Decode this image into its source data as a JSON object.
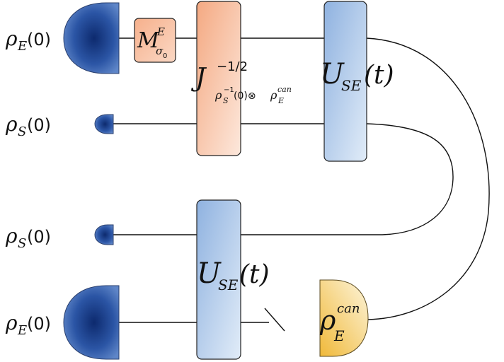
{
  "diagram": {
    "left_labels": [
      {
        "symbol": "ρ",
        "sub": "E",
        "arg": "(0)"
      },
      {
        "symbol": "ρ",
        "sub": "S",
        "arg": "(0)"
      },
      {
        "symbol": "ρ",
        "sub": "S",
        "arg": "(0)"
      },
      {
        "symbol": "ρ",
        "sub": "E",
        "arg": "(0)"
      }
    ],
    "measure_box": {
      "symbol": "M",
      "sup": "E",
      "sub": "σ",
      "subsub": "0"
    },
    "twirl_box": {
      "symbol": "J",
      "sup": "−1/2",
      "sub_rho": "ρ",
      "sub_S": "S",
      "sub_sup": "−1",
      "sub_arg": "(0)⊗",
      "sub_rho2": "ρ",
      "sub_E": "E",
      "sub_can": "can"
    },
    "unitary_top": {
      "symbol": "U",
      "sub": "SE",
      "arg": "(t)"
    },
    "unitary_bottom": {
      "symbol": "U",
      "sub": "SE",
      "arg": "(t)"
    },
    "canonical_state": {
      "symbol": "ρ",
      "sub": "E",
      "sup": "can"
    },
    "colors": {
      "blue_dark": "#1a3f8c",
      "blue_light": "#5f86c8",
      "orange_box": "#f6b595",
      "orange_light": "#fde6da",
      "blue_box": "#9dbde6",
      "blue_box_light": "#dbe8f7",
      "yellow_dark": "#f2c24e",
      "yellow_light": "#fdf3d3"
    }
  }
}
